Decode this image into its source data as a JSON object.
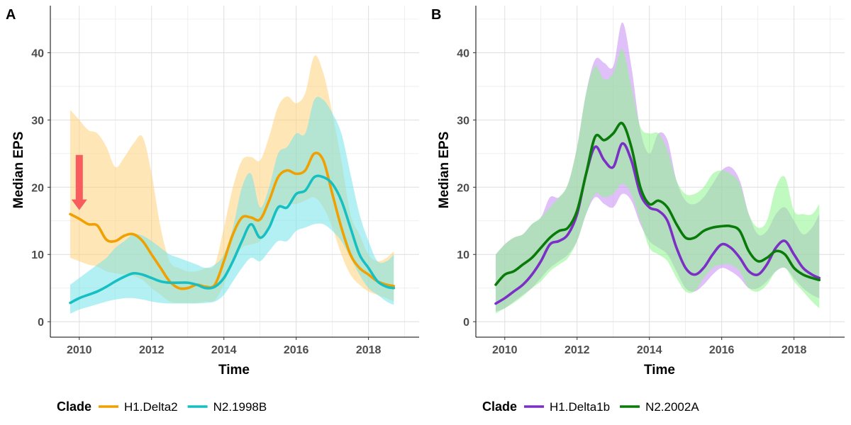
{
  "chart_data": [
    {
      "panel": "A",
      "type": "line",
      "xlabel": "Time",
      "ylabel": "Median EPS",
      "xlim": [
        2009.2,
        2019.4
      ],
      "ylim": [
        -2.3,
        47
      ],
      "xticks": [
        2010,
        2012,
        2014,
        2016,
        2018
      ],
      "yticks": [
        0,
        10,
        20,
        30,
        40
      ],
      "xtick_labels": [
        "2010",
        "2012",
        "2014",
        "2016",
        "2018"
      ],
      "ytick_labels": [
        "0",
        "10",
        "20",
        "30",
        "40"
      ],
      "grid": true,
      "legend_title": "Clade",
      "legend_position": "bottom",
      "annotation": {
        "type": "arrow",
        "color": "#f8545a",
        "x": 2010.0,
        "y_from": 24.8,
        "y_to": 16.6
      },
      "series": [
        {
          "name": "H1.Delta2",
          "color": "#f0a000",
          "band_color": "#ffd27a",
          "x": [
            2009.75,
            2010.0,
            2010.25,
            2010.5,
            2010.75,
            2011.0,
            2011.25,
            2011.5,
            2011.75,
            2012.0,
            2012.25,
            2012.5,
            2012.75,
            2013.0,
            2013.25,
            2013.5,
            2013.75,
            2014.0,
            2014.25,
            2014.5,
            2014.75,
            2015.0,
            2015.25,
            2015.5,
            2015.75,
            2016.0,
            2016.25,
            2016.5,
            2016.75,
            2017.0,
            2017.25,
            2017.5,
            2017.75,
            2018.0,
            2018.25,
            2018.5,
            2018.7
          ],
          "y": [
            16,
            15.3,
            14.5,
            14.3,
            12.2,
            12,
            12.8,
            13,
            12,
            10,
            8,
            6,
            5,
            5,
            5.5,
            5.2,
            5.5,
            9,
            13,
            15.5,
            15.5,
            15.2,
            18,
            21.5,
            22.5,
            22,
            22.5,
            25,
            24,
            19,
            14,
            10,
            8,
            7,
            6,
            5.5,
            5.3
          ],
          "lower": [
            9.5,
            9,
            8.5,
            8.2,
            7.5,
            7.2,
            7,
            6.8,
            6.2,
            5,
            4,
            3,
            2.8,
            2.8,
            2.8,
            3,
            3.2,
            5.5,
            9,
            11,
            11.5,
            12,
            14,
            16.5,
            17.5,
            17.5,
            18,
            18.5,
            17,
            14,
            10,
            7,
            5.5,
            4.5,
            4,
            3.5,
            3
          ],
          "upper": [
            31.5,
            30,
            28.5,
            28,
            26,
            23,
            24.5,
            26.5,
            27.5,
            22,
            14,
            9,
            8,
            7.5,
            7.5,
            8,
            8.5,
            14,
            20,
            24,
            24.5,
            24,
            27.5,
            32,
            33.5,
            32.5,
            34,
            39.5,
            37,
            31,
            24,
            16,
            13,
            10,
            9,
            9.5,
            10.5
          ]
        },
        {
          "name": "N2.1998B",
          "color": "#17bfc2",
          "band_color": "#74e4ea",
          "x": [
            2009.75,
            2010.0,
            2010.25,
            2010.5,
            2010.75,
            2011.0,
            2011.25,
            2011.5,
            2011.75,
            2012.0,
            2012.25,
            2012.5,
            2012.75,
            2013.0,
            2013.25,
            2013.5,
            2013.75,
            2014.0,
            2014.25,
            2014.5,
            2014.75,
            2015.0,
            2015.25,
            2015.5,
            2015.75,
            2016.0,
            2016.25,
            2016.5,
            2016.75,
            2017.0,
            2017.25,
            2017.5,
            2017.75,
            2018.0,
            2018.25,
            2018.5,
            2018.7
          ],
          "y": [
            2.8,
            3.5,
            4,
            4.5,
            5.2,
            6,
            6.7,
            7.2,
            7,
            6.5,
            6,
            5.8,
            5.8,
            5.8,
            5.5,
            5,
            5.2,
            6.5,
            9,
            12,
            14.5,
            12.5,
            14,
            17,
            17,
            19,
            19.5,
            21.5,
            21.5,
            20.5,
            18,
            14,
            10,
            8,
            6,
            5.2,
            5
          ],
          "lower": [
            1.2,
            1.8,
            2.2,
            2.6,
            3,
            3.3,
            3.5,
            3.5,
            3.3,
            3,
            2.8,
            2.7,
            2.7,
            2.7,
            2.7,
            2.8,
            3,
            4,
            6,
            8,
            9.5,
            9,
            10.5,
            12,
            12,
            13.5,
            14,
            14.5,
            14.5,
            13.5,
            12,
            9.5,
            7,
            5,
            4,
            3,
            2.5
          ],
          "upper": [
            5.5,
            6.5,
            7.5,
            8.5,
            9.5,
            11,
            12,
            13,
            12.8,
            12,
            11,
            10,
            9.5,
            9,
            8.5,
            8,
            8.5,
            10,
            14,
            20,
            22,
            17,
            20,
            25,
            26,
            28,
            28,
            33,
            33,
            31,
            28,
            22,
            16,
            12,
            9,
            9,
            10
          ]
        }
      ]
    },
    {
      "panel": "B",
      "type": "line",
      "xlabel": "Time",
      "ylabel": "Median EPS",
      "xlim": [
        2009.2,
        2019.4
      ],
      "ylim": [
        -2.3,
        47
      ],
      "xticks": [
        2010,
        2012,
        2014,
        2016,
        2018
      ],
      "yticks": [
        0,
        10,
        20,
        30,
        40
      ],
      "xtick_labels": [
        "2010",
        "2012",
        "2014",
        "2016",
        "2018"
      ],
      "ytick_labels": [
        "0",
        "10",
        "20",
        "30",
        "40"
      ],
      "grid": true,
      "legend_title": "Clade",
      "legend_position": "bottom",
      "series": [
        {
          "name": "H1.Delta1b",
          "color": "#7b2fc4",
          "band_color": "#c68cf4",
          "x": [
            2009.75,
            2010.0,
            2010.25,
            2010.5,
            2010.75,
            2011.0,
            2011.25,
            2011.5,
            2011.75,
            2012.0,
            2012.25,
            2012.5,
            2012.75,
            2013.0,
            2013.25,
            2013.5,
            2013.75,
            2014.0,
            2014.25,
            2014.5,
            2014.75,
            2015.0,
            2015.25,
            2015.5,
            2015.75,
            2016.0,
            2016.25,
            2016.5,
            2016.75,
            2017.0,
            2017.25,
            2017.5,
            2017.75,
            2018.0,
            2018.25,
            2018.5,
            2018.7
          ],
          "y": [
            2.7,
            3.5,
            4.5,
            5.5,
            7,
            9,
            11.5,
            12,
            13,
            16,
            22,
            26,
            24,
            23,
            26.5,
            24,
            19,
            17,
            16.5,
            15,
            11,
            8,
            7,
            8,
            10,
            11.5,
            11,
            9.5,
            7.5,
            7,
            8.5,
            11,
            12,
            10,
            8,
            7,
            6.5
          ],
          "lower": [
            1.5,
            2,
            3,
            4,
            5,
            6.5,
            8,
            9,
            10,
            12,
            16,
            18.5,
            17.5,
            17,
            19,
            18,
            14.5,
            12,
            11,
            10,
            7.5,
            5,
            4.5,
            5.5,
            7,
            8,
            7.5,
            6.5,
            5,
            5,
            6,
            7.5,
            8,
            6.5,
            5,
            4,
            3.5
          ],
          "upper": [
            10,
            11.5,
            12.5,
            13,
            14.5,
            15.5,
            18.5,
            18.5,
            20.5,
            26,
            34,
            39,
            38.5,
            38,
            44.5,
            38,
            28.5,
            25,
            28,
            27,
            21,
            18,
            17.5,
            18.5,
            20.5,
            22.5,
            23,
            21,
            16,
            13,
            13.5,
            16,
            17,
            15,
            13,
            14,
            16
          ]
        },
        {
          "name": "N2.2002A",
          "color": "#0a7a0a",
          "band_color": "#8ef58e",
          "x": [
            2009.75,
            2010.0,
            2010.25,
            2010.5,
            2010.75,
            2011.0,
            2011.25,
            2011.5,
            2011.75,
            2012.0,
            2012.25,
            2012.5,
            2012.75,
            2013.0,
            2013.25,
            2013.5,
            2013.75,
            2014.0,
            2014.25,
            2014.5,
            2014.75,
            2015.0,
            2015.25,
            2015.5,
            2015.75,
            2016.0,
            2016.25,
            2016.5,
            2016.75,
            2017.0,
            2017.25,
            2017.5,
            2017.75,
            2018.0,
            2018.25,
            2018.5,
            2018.7
          ],
          "y": [
            5.5,
            7,
            7.5,
            8.5,
            9.5,
            11,
            12.5,
            13.5,
            14,
            16.5,
            22,
            27.5,
            27,
            28,
            29.5,
            26,
            20,
            17.5,
            18,
            17,
            14.5,
            12.5,
            12.5,
            13.5,
            14,
            14.2,
            14.2,
            13.5,
            10.5,
            9,
            9.5,
            10.5,
            10,
            8,
            7,
            6.5,
            6.2
          ],
          "lower": [
            1.2,
            2,
            2.8,
            3.8,
            5,
            6,
            7.5,
            8.5,
            9.5,
            12,
            16,
            19,
            18.5,
            19,
            20.5,
            19,
            15,
            11,
            10,
            9,
            6.5,
            4.5,
            4.5,
            6.5,
            8,
            8.5,
            8.5,
            7.5,
            5,
            4.5,
            5.5,
            7.5,
            8,
            6,
            4.5,
            3,
            2
          ],
          "upper": [
            10,
            11.5,
            12.5,
            13,
            14.5,
            15.5,
            17,
            18.5,
            20.5,
            26,
            34,
            38,
            36,
            37,
            40.5,
            35,
            29,
            28,
            28,
            25.5,
            21,
            19,
            19,
            20,
            22,
            22.5,
            22,
            20.5,
            16,
            14,
            15,
            20,
            21.5,
            16.5,
            16,
            16,
            17.5
          ]
        }
      ]
    }
  ]
}
